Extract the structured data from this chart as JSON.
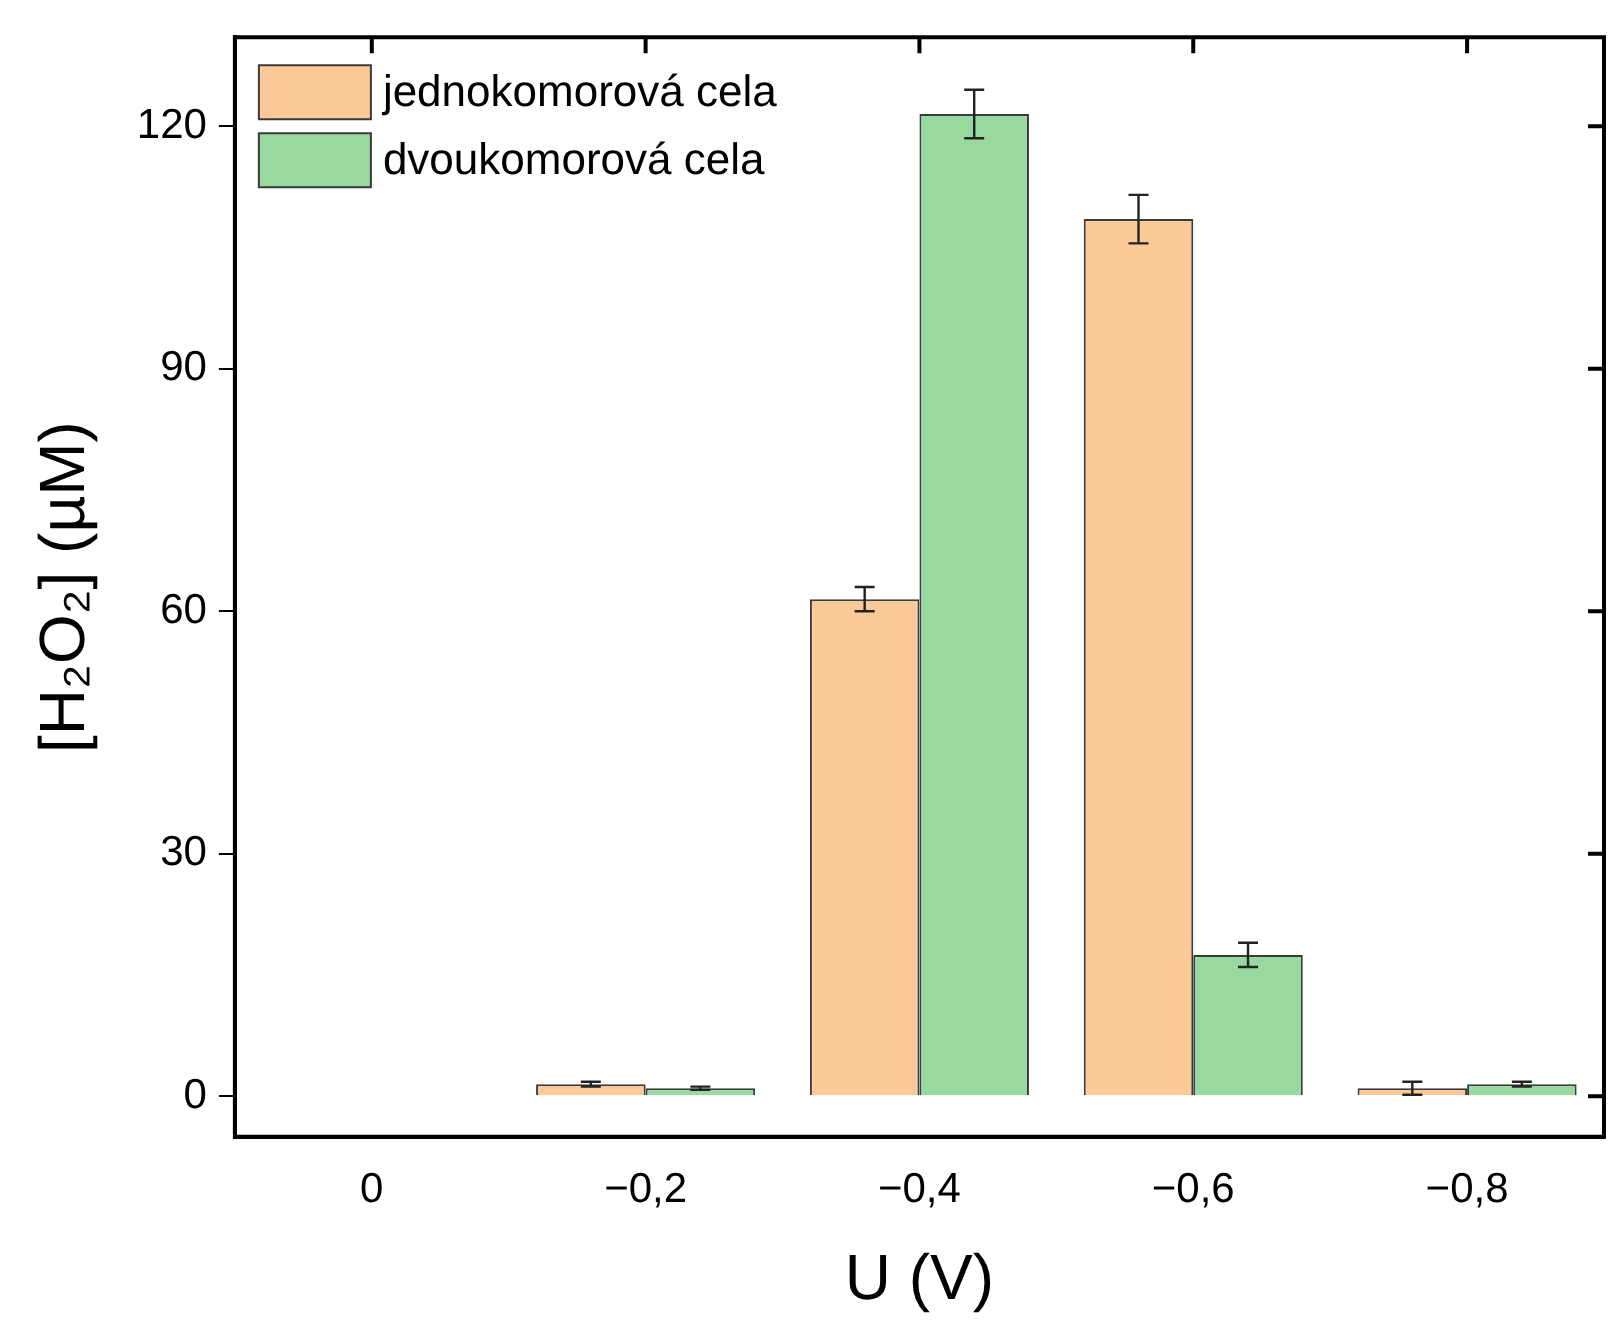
{
  "chart_data": {
    "type": "bar",
    "xlabel": "U (V)",
    "ylabel": "[H₂O₂] (µM)",
    "categories": [
      "0",
      "−0,2",
      "−0,4",
      "−0,6",
      "−0,8"
    ],
    "series": [
      {
        "name": "jednokomorová cela",
        "color": "#fdca97",
        "values": [
          0,
          1.5,
          61.5,
          108.5,
          1
        ],
        "errors": [
          null,
          0.3,
          1.5,
          3,
          0.8
        ]
      },
      {
        "name": "dvoukomorová cela",
        "color": "#98d9a0",
        "values": [
          0,
          1,
          121.5,
          17.5,
          1.5
        ],
        "errors": [
          null,
          0.2,
          3,
          1.5,
          0.3
        ]
      }
    ],
    "ylim": [
      -5,
      131
    ],
    "yticks": [
      0,
      30,
      60,
      90,
      120
    ],
    "grid": false,
    "legend": "top left"
  }
}
